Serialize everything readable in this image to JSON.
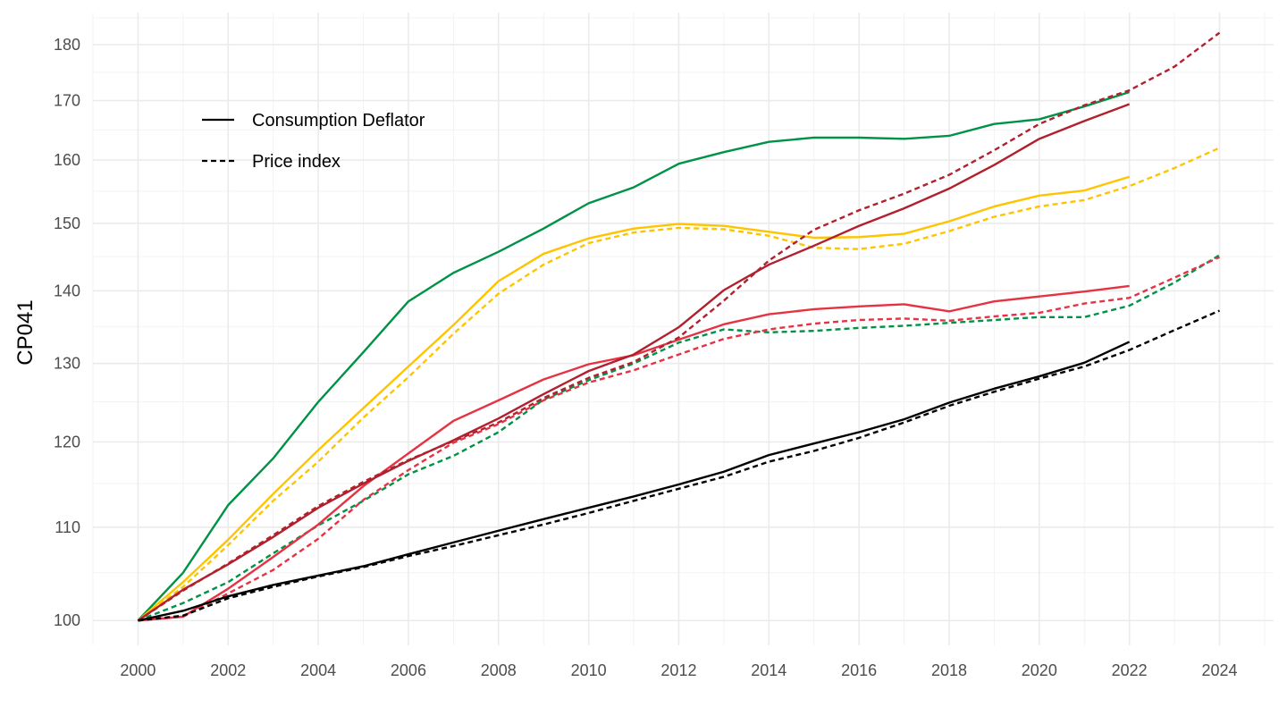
{
  "chart_data": {
    "type": "line",
    "title": "",
    "xlabel": "",
    "ylabel": "CP041",
    "x_ticks": [
      "2000",
      "2002",
      "2004",
      "2006",
      "2008",
      "2010",
      "2012",
      "2014",
      "2016",
      "2018",
      "2020",
      "2022",
      "2024"
    ],
    "y_ticks": [
      100,
      110,
      120,
      130,
      140,
      150,
      160,
      170,
      180
    ],
    "y_scale": "log",
    "xlim": [
      1999,
      2025.2
    ],
    "ylim": [
      97.5,
      186
    ],
    "grid": true,
    "legend": {
      "position": "top-left",
      "entries": [
        {
          "label": "Consumption Deflator",
          "linetype": "solid"
        },
        {
          "label": "Price index",
          "linetype": "dashed"
        }
      ]
    },
    "series": [
      {
        "group": "green",
        "linetype": "solid",
        "color": "#009246",
        "x": [
          2000,
          2001,
          2002,
          2003,
          2004,
          2005,
          2006,
          2007,
          2008,
          2009,
          2010,
          2011,
          2012,
          2013,
          2014,
          2015,
          2016,
          2017,
          2018,
          2019,
          2020,
          2021,
          2022
        ],
        "values": [
          100,
          105,
          112.5,
          118,
          125,
          131.5,
          138.5,
          142.6,
          145.7,
          149.2,
          153.1,
          155.6,
          159.4,
          161.3,
          163,
          163.7,
          163.7,
          163.5,
          164,
          166,
          166.8,
          169,
          171.5
        ]
      },
      {
        "group": "green",
        "linetype": "dashed",
        "color": "#009246",
        "x": [
          2000,
          2001,
          2002,
          2003,
          2004,
          2005,
          2006,
          2007,
          2008,
          2009,
          2010,
          2011,
          2012,
          2013,
          2014,
          2015,
          2016,
          2017,
          2018,
          2019,
          2020,
          2021,
          2022,
          2023,
          2024
        ],
        "values": [
          100,
          101.8,
          104,
          107.1,
          110.2,
          113,
          116.1,
          118.3,
          121.2,
          125.3,
          127.8,
          130,
          132.8,
          134.6,
          134.2,
          134.4,
          134.8,
          135.1,
          135.5,
          135.9,
          136.3,
          136.3,
          137.9,
          141.2,
          145.2
        ]
      },
      {
        "group": "yellow",
        "linetype": "solid",
        "color": "#FFC400",
        "x": [
          2000,
          2001,
          2002,
          2003,
          2004,
          2005,
          2006,
          2007,
          2008,
          2009,
          2010,
          2011,
          2012,
          2013,
          2014,
          2015,
          2016,
          2017,
          2018,
          2019,
          2020,
          2021,
          2022
        ],
        "values": [
          100,
          104,
          108.6,
          113.8,
          119,
          124.2,
          129.6,
          135.2,
          141.4,
          145.4,
          147.7,
          149.2,
          149.9,
          149.6,
          148.7,
          147.8,
          147.9,
          148.4,
          150.3,
          152.6,
          154.3,
          155.1,
          157.3
        ]
      },
      {
        "group": "yellow",
        "linetype": "dashed",
        "color": "#FFC400",
        "x": [
          2000,
          2001,
          2002,
          2003,
          2004,
          2005,
          2006,
          2007,
          2008,
          2009,
          2010,
          2011,
          2012,
          2013,
          2014,
          2015,
          2016,
          2017,
          2018,
          2019,
          2020,
          2021,
          2022,
          2023,
          2024
        ],
        "values": [
          100,
          103.5,
          108,
          113,
          117.6,
          123,
          128.2,
          134,
          139.6,
          143.8,
          147,
          148.6,
          149.3,
          149.1,
          148.1,
          146.3,
          146.1,
          146.9,
          148.8,
          151,
          152.6,
          153.6,
          155.8,
          158.7,
          162
        ]
      },
      {
        "group": "red",
        "linetype": "solid",
        "color": "#E63343",
        "x": [
          2000,
          2001,
          2002,
          2003,
          2004,
          2005,
          2006,
          2007,
          2008,
          2009,
          2010,
          2011,
          2012,
          2013,
          2014,
          2015,
          2016,
          2017,
          2018,
          2019,
          2020,
          2021,
          2022
        ],
        "values": [
          100,
          100.4,
          103.3,
          106.7,
          110.3,
          114.7,
          118.6,
          122.6,
          125.2,
          127.9,
          129.9,
          131.1,
          133.2,
          135.3,
          136.7,
          137.4,
          137.8,
          138.1,
          137.1,
          138.5,
          139.2,
          139.9,
          140.7
        ]
      },
      {
        "group": "red",
        "linetype": "dashed",
        "color": "#E63343",
        "x": [
          2000,
          2001,
          2002,
          2003,
          2004,
          2005,
          2006,
          2007,
          2008,
          2009,
          2010,
          2011,
          2012,
          2013,
          2014,
          2015,
          2016,
          2017,
          2018,
          2019,
          2020,
          2021,
          2022,
          2023,
          2024
        ],
        "values": [
          100,
          100.4,
          102.8,
          105.3,
          108.7,
          113.1,
          116.6,
          119.9,
          122.2,
          125.2,
          127.5,
          129.1,
          131.2,
          133.3,
          134.6,
          135.4,
          135.9,
          136.1,
          135.8,
          136.4,
          136.9,
          138.2,
          139,
          141.9,
          144.9
        ]
      },
      {
        "group": "darkred",
        "linetype": "solid",
        "color": "#B1202D",
        "x": [
          2000,
          2001,
          2002,
          2003,
          2004,
          2005,
          2006,
          2007,
          2008,
          2009,
          2010,
          2011,
          2012,
          2013,
          2014,
          2015,
          2016,
          2017,
          2018,
          2019,
          2020,
          2021,
          2022
        ],
        "values": [
          100,
          103.2,
          105.9,
          108.9,
          112.2,
          115,
          117.7,
          120.2,
          122.9,
          126,
          129,
          131.2,
          134.9,
          140.1,
          143.8,
          146.6,
          149.6,
          152.3,
          155.4,
          159.2,
          163.5,
          166.5,
          169.4
        ]
      },
      {
        "group": "darkred",
        "linetype": "dashed",
        "color": "#B1202D",
        "x": [
          2000,
          2001,
          2002,
          2003,
          2004,
          2005,
          2006,
          2007,
          2008,
          2009,
          2010,
          2011,
          2012,
          2013,
          2014,
          2015,
          2016,
          2017,
          2018,
          2019,
          2020,
          2021,
          2022,
          2023,
          2024
        ],
        "values": [
          100,
          103.1,
          106,
          109.1,
          112.4,
          115.2,
          117.8,
          120.1,
          122.4,
          125.5,
          128.1,
          130.2,
          133.5,
          138.6,
          144.4,
          149,
          152,
          154.6,
          157.6,
          161.6,
          166,
          169.2,
          171.8,
          176,
          182.2
        ]
      },
      {
        "group": "black",
        "linetype": "solid",
        "color": "#000000",
        "x": [
          2000,
          2001,
          2002,
          2003,
          2004,
          2005,
          2006,
          2007,
          2008,
          2009,
          2010,
          2011,
          2012,
          2013,
          2014,
          2015,
          2016,
          2017,
          2018,
          2019,
          2020,
          2021,
          2022
        ],
        "values": [
          100,
          101,
          102.5,
          103.7,
          104.7,
          105.7,
          107,
          108.3,
          109.6,
          110.9,
          112.2,
          113.5,
          114.9,
          116.4,
          118.4,
          119.8,
          121.2,
          122.8,
          124.9,
          126.7,
          128.3,
          130.1,
          132.9
        ]
      },
      {
        "group": "black",
        "linetype": "dashed",
        "color": "#000000",
        "x": [
          2000,
          2001,
          2002,
          2003,
          2004,
          2005,
          2006,
          2007,
          2008,
          2009,
          2010,
          2011,
          2012,
          2013,
          2014,
          2015,
          2016,
          2017,
          2018,
          2019,
          2020,
          2021,
          2022,
          2023,
          2024
        ],
        "values": [
          100,
          100.5,
          102.3,
          103.5,
          104.6,
          105.6,
          106.8,
          107.9,
          109.1,
          110.3,
          111.6,
          113,
          114.4,
          115.8,
          117.6,
          118.9,
          120.5,
          122.4,
          124.5,
          126.3,
          128,
          129.6,
          131.8,
          134.5,
          137.2
        ]
      }
    ]
  }
}
